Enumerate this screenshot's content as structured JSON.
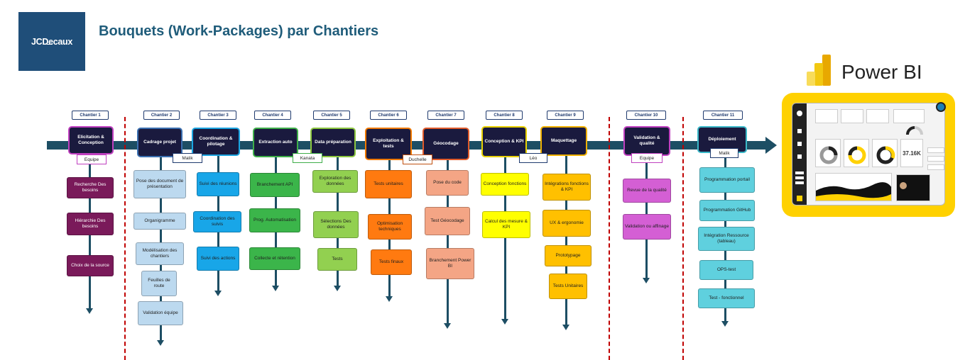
{
  "title": "Bouquets (Work-Packages) par Chantiers",
  "logo": "JCDecaux",
  "powerbi": {
    "label": "Power BI",
    "kpi": "37.16K"
  },
  "colors": {
    "axis": "#1d4e64",
    "separator": "#c00000",
    "chantier_bg": "#1a1a3e",
    "dashboard_frame": "#ffd100"
  },
  "chantiers": [
    {
      "label": "Chantier 1",
      "name": "Elicitation & Conception",
      "owner": "Equipe",
      "border": "#c040c0",
      "owner_border": "#c040c0",
      "task_bg": "#7a1a5a",
      "task_color": "#ffffff",
      "tasks": [
        "Recherche Des besoins",
        "Hiérarchie Des besoins",
        "Choix de la source"
      ]
    },
    {
      "label": "Chantier 2",
      "name": "Cadrage projet",
      "owner": "",
      "border": "#3a6fb0",
      "owner_border": "#1f3a6e",
      "task_bg": "#bcd9ef",
      "task_color": "#1f1f1f",
      "tasks": [
        "Pose des document de présentation",
        "Organigramme",
        "Modélisation des chantiers",
        "Feuilles de route",
        "Validation équipe"
      ]
    },
    {
      "label": "Chantier 3",
      "name": "Coordination & pilotage",
      "owner": "Malik",
      "border": "#1ba4e0",
      "owner_border": "#1f3a6e",
      "task_bg": "#18a6e8",
      "task_color": "#1f1f1f",
      "tasks": [
        "Suivi des réunions",
        "Coordination des suivis",
        "Suivi des actions"
      ]
    },
    {
      "label": "Chantier 4",
      "name": "Extraction auto",
      "owner": "",
      "border": "#3fae49",
      "owner_border": "#3fae49",
      "task_bg": "#3bb54a",
      "task_color": "#1f1f1f",
      "tasks": [
        "Branchement API",
        "Prog. Automatisation",
        "Collecte et rétention"
      ]
    },
    {
      "label": "Chantier 5",
      "name": "Data préparation",
      "owner": "Kanata",
      "border": "#8cc63f",
      "owner_border": "#3fae49",
      "task_bg": "#92d050",
      "task_color": "#1f1f1f",
      "tasks": [
        "Exploration des données",
        "Sélections Des données",
        "Tests"
      ]
    },
    {
      "label": "Chantier 6",
      "name": "Exploitation & tests",
      "owner": "",
      "border": "#f07800",
      "owner_border": "#f07800",
      "task_bg": "#ff7a10",
      "task_color": "#1f1f1f",
      "tasks": [
        "Tests unitaires",
        "Optimisation techniques",
        "Tests finaux"
      ]
    },
    {
      "label": "Chantier 7",
      "name": "Géocodage",
      "owner": "Duchelle",
      "border": "#e05a2a",
      "owner_border": "#c05010",
      "task_bg": "#f4a585",
      "task_color": "#1f1f1f",
      "tasks": [
        "Pose du code",
        "Test Géocodage",
        "Branchement Power BI"
      ]
    },
    {
      "label": "Chantier 8",
      "name": "Conception & KPI",
      "owner": "",
      "border": "#e8d000",
      "owner_border": "#e8d000",
      "task_bg": "#ffff00",
      "task_color": "#1f1f1f",
      "tasks": [
        "Conception fonctions",
        "Calcul des mesure & KPI"
      ]
    },
    {
      "label": "Chantier 9",
      "name": "Maquettage",
      "owner": "Léo",
      "border": "#f0b000",
      "owner_border": "#1f3a6e",
      "task_bg": "#ffc000",
      "task_color": "#1f1f1f",
      "tasks": [
        "Intégrations fonctions & KPI",
        "UX & ergonomie",
        "Prototypage",
        "Tests Unitaires"
      ]
    },
    {
      "label": "Chantier 10",
      "name": "Validation & qualité",
      "owner": "Equipe",
      "border": "#c040c0",
      "owner_border": "#c040c0",
      "task_bg": "#d45fd4",
      "task_color": "#1f1f1f",
      "tasks": [
        "Revue de la qualité",
        "Validation ou affinage"
      ]
    },
    {
      "label": "Chantier 11",
      "name": "Déploiement",
      "owner": "Malik",
      "border": "#3ab8c8",
      "owner_border": "#1f3a6e",
      "task_bg": "#5fd0de",
      "task_color": "#1f1f1f",
      "tasks": [
        "Programmation portail",
        "Programmation GitHub",
        "Intégration Ressource (tableau)",
        "OPS-test",
        "Test - fonctionnel"
      ]
    }
  ]
}
